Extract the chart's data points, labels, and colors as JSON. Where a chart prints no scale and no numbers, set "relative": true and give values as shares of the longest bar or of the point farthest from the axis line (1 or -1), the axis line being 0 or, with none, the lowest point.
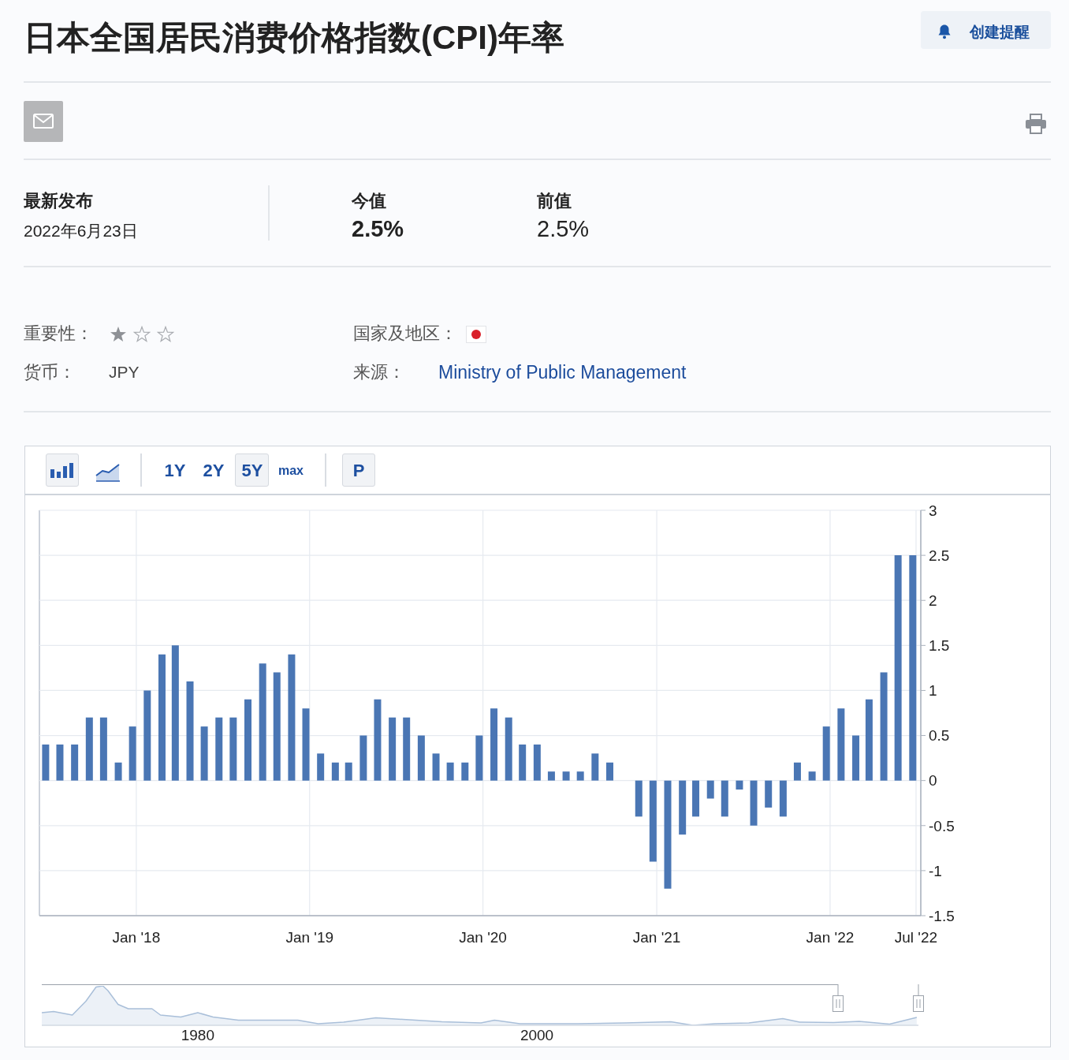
{
  "chart_data": [
    {
      "type": "bar",
      "title": "日本全国居民消费价格指数(CPI)年率",
      "x": [
        "2017-06-24",
        "2017-07-24",
        "2017-08-24",
        "2017-09-24",
        "2017-10-24",
        "2017-11-24",
        "2017-12-24",
        "2018-01-24",
        "2018-02-24",
        "2018-03-24",
        "2018-04-24",
        "2018-05-24",
        "2018-06-24",
        "2018-07-24",
        "2018-08-24",
        "2018-09-24",
        "2018-10-24",
        "2018-11-24",
        "2018-12-24",
        "2019-01-24",
        "2019-02-24",
        "2019-03-24",
        "2019-04-24",
        "2019-05-24",
        "2019-06-24",
        "2019-07-24",
        "2019-08-24",
        "2019-09-24",
        "2019-10-24",
        "2019-11-24",
        "2019-12-24",
        "2020-01-24",
        "2020-02-24",
        "2020-03-24",
        "2020-04-24",
        "2020-05-24",
        "2020-06-24",
        "2020-07-24",
        "2020-08-24",
        "2020-09-24",
        "2020-10-24",
        "2020-11-24",
        "2020-12-24",
        "2021-01-24",
        "2021-02-24",
        "2021-03-24",
        "2021-04-24",
        "2021-05-24",
        "2021-06-24",
        "2021-07-24",
        "2021-08-24",
        "2021-09-24",
        "2021-10-24",
        "2021-11-24",
        "2021-12-24",
        "2022-01-24",
        "2022-02-24",
        "2022-03-24",
        "2022-04-24",
        "2022-05-24",
        "2022-06-24"
      ],
      "values": [
        0.4,
        0.4,
        0.4,
        0.7,
        0.7,
        0.2,
        0.6,
        1.0,
        1.4,
        1.5,
        1.1,
        0.6,
        0.7,
        0.7,
        0.9,
        1.3,
        1.2,
        1.4,
        0.8,
        0.3,
        0.2,
        0.2,
        0.5,
        0.9,
        0.7,
        0.7,
        0.5,
        0.3,
        0.2,
        0.2,
        0.5,
        0.8,
        0.7,
        0.4,
        0.4,
        0.1,
        0.1,
        0.1,
        0.3,
        0.2,
        0,
        -0.4,
        -0.9,
        -1.2,
        -0.6,
        -0.4,
        -0.2,
        -0.4,
        -0.1,
        -0.5,
        -0.3,
        -0.4,
        0.2,
        0.1,
        0.6,
        0.8,
        0.5,
        0.9,
        1.2,
        2.5,
        2.5
      ],
      "color": "#4a76b4",
      "xlim": [
        "2017-06-11",
        "2022-07-11"
      ],
      "xticks": [
        {
          "value": "2018-01",
          "label": "Jan '18"
        },
        {
          "value": "2019-01",
          "label": "Jan '19"
        },
        {
          "value": "2020-01",
          "label": "Jan '20"
        },
        {
          "value": "2021-01",
          "label": "Jan '21"
        },
        {
          "value": "2022-01",
          "label": "Jan '22"
        },
        {
          "value": "2022-07",
          "label": "Jul '22"
        }
      ],
      "ylim": [
        -1.5,
        3
      ],
      "yticks": [
        -1.5,
        -1,
        -0.5,
        0,
        0.5,
        1,
        1.5,
        2,
        2.5,
        3
      ],
      "grid": true,
      "annotations": [
        "创建提醒",
        "最新发布",
        "2022年6月23日",
        "今值",
        "2.5%",
        "前值",
        "2.5%",
        "重要性：",
        "国家及地区：",
        "货币：",
        "JPY",
        "来源：",
        "Ministry of Public Management",
        "1Y",
        "2Y",
        "5Y",
        "max",
        "P"
      ]
    },
    {
      "type": "area",
      "relative": true,
      "color": "#a9bfd9",
      "x": [
        1970.8,
        1971.5,
        1972.6,
        1973.4,
        1974.0,
        1974.4,
        1974.7,
        1975.3,
        1975.9,
        1977.3,
        1977.8,
        1979.0,
        1980.0,
        1980.9,
        1982.4,
        1985.9,
        1987.1,
        1988.6,
        1990.5,
        1992.1,
        1994.4,
        1996.7,
        1997.5,
        1999.0,
        2002.4,
        2005.2,
        2007.9,
        2009.2,
        2010.5,
        2012.5,
        2014.5,
        2015.5,
        2017.5,
        2019.0,
        2020.8,
        2022.4
      ],
      "values": [
        0.32,
        0.35,
        0.26,
        0.61,
        0.97,
        1,
        0.88,
        0.53,
        0.42,
        0.42,
        0.26,
        0.21,
        0.32,
        0.21,
        0.13,
        0.13,
        0.04,
        0.08,
        0.19,
        0.15,
        0.09,
        0.06,
        0.13,
        0.04,
        0.04,
        0.06,
        0.09,
        0,
        0.04,
        0.06,
        0.17,
        0.08,
        0.07,
        0.1,
        0.03,
        0.2
      ],
      "xlim": [
        1970.8,
        2022.5
      ],
      "xticks": [
        1980,
        2000
      ],
      "tick_labels": "x"
    }
  ]
}
